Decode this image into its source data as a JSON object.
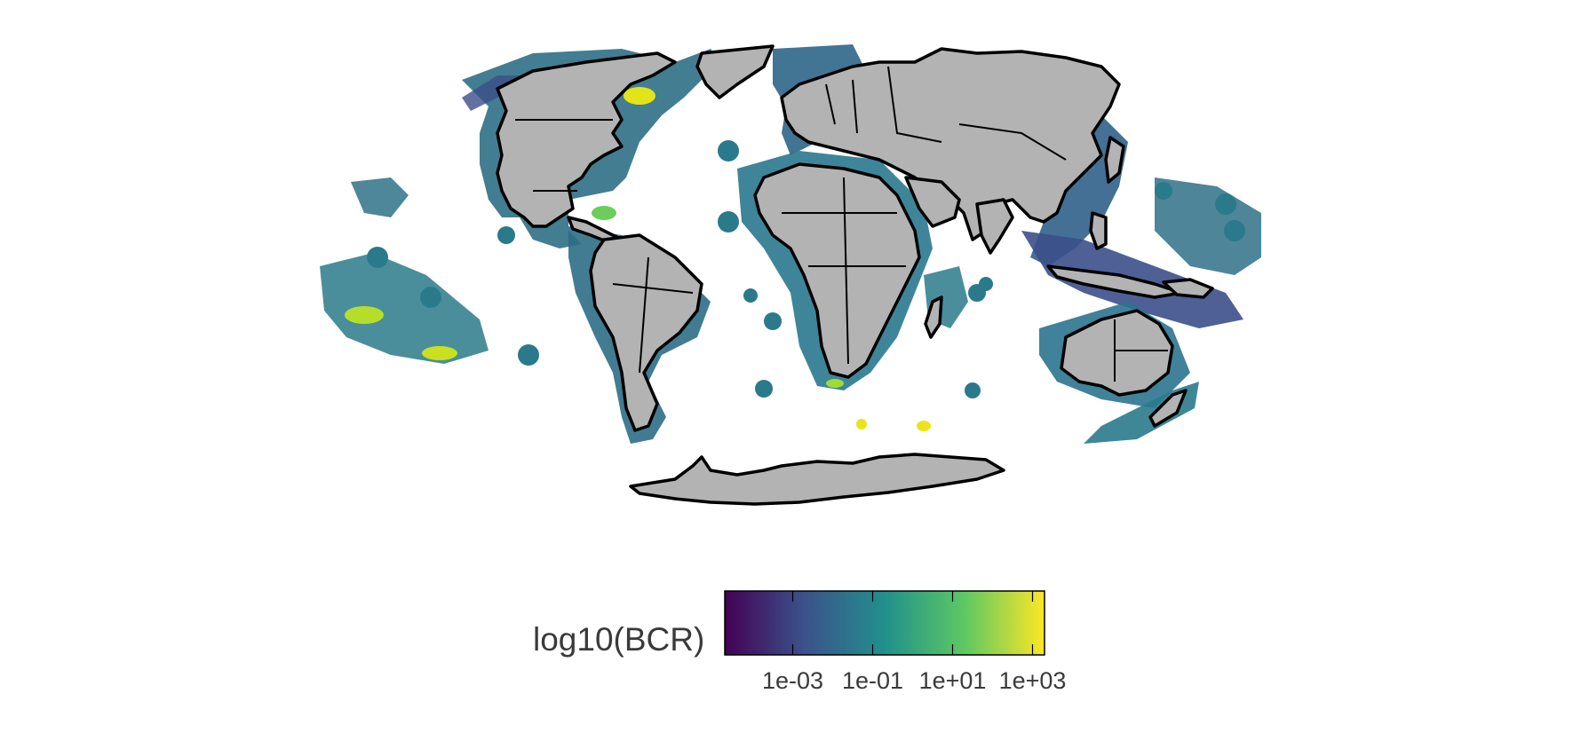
{
  "legend": {
    "title": "log10(BCR)",
    "ticks": [
      "1e-03",
      "1e-01",
      "1e+01",
      "1e+03"
    ],
    "tick_log_values": [
      -3,
      -1,
      1,
      3
    ],
    "range_log": [
      -4.7,
      3.3
    ],
    "palette": "viridis",
    "colors": [
      "#440154",
      "#3b528b",
      "#21908c",
      "#5dc863",
      "#fde725"
    ]
  },
  "map": {
    "projection": "mollweide",
    "land_color": "#b3b3b3",
    "border_color": "#000000",
    "ocean_color": "#ffffff"
  }
}
